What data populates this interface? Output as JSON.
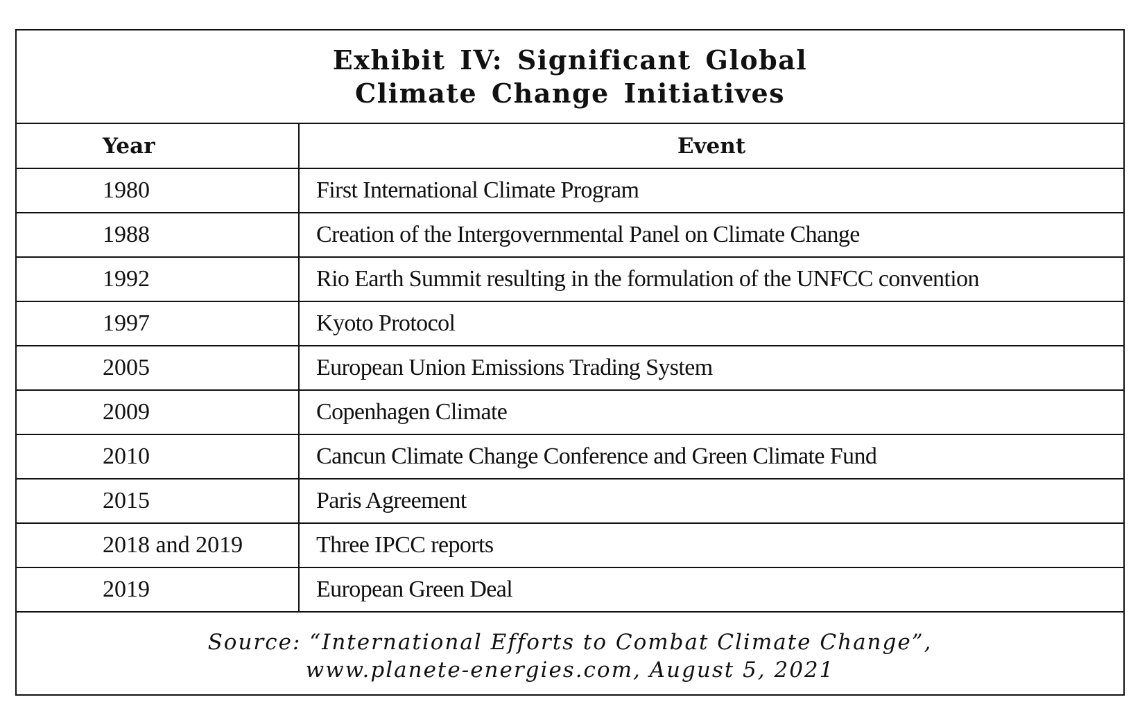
{
  "exhibit": {
    "title_line1": "Exhibit IV: Significant Global",
    "title_line2": "Climate Change Initiatives",
    "columns": {
      "year": "Year",
      "event": "Event"
    },
    "rows": [
      {
        "year": "1980",
        "event": "First International Climate Program"
      },
      {
        "year": "1988",
        "event": "Creation of the Intergovernmental Panel on Climate Change"
      },
      {
        "year": "1992",
        "event": "Rio Earth Summit resulting in the formulation of the UNFCC convention"
      },
      {
        "year": "1997",
        "event": "Kyoto Protocol"
      },
      {
        "year": "2005",
        "event": "European Union Emissions Trading System"
      },
      {
        "year": "2009",
        "event": "Copenhagen Climate"
      },
      {
        "year": "2010",
        "event": "Cancun Climate Change Conference and Green Climate Fund"
      },
      {
        "year": "2015",
        "event": "Paris Agreement"
      },
      {
        "year": "2018 and 2019",
        "event": "Three IPCC reports"
      },
      {
        "year": "2019",
        "event": "European Green Deal"
      }
    ],
    "source_line1": "Source: “International Efforts to Combat Climate Change”,",
    "source_line2": "www.planete-energies.com, August 5, 2021"
  },
  "colors": {
    "text": "#111111",
    "rule": "#111111",
    "background": "#ffffff"
  }
}
